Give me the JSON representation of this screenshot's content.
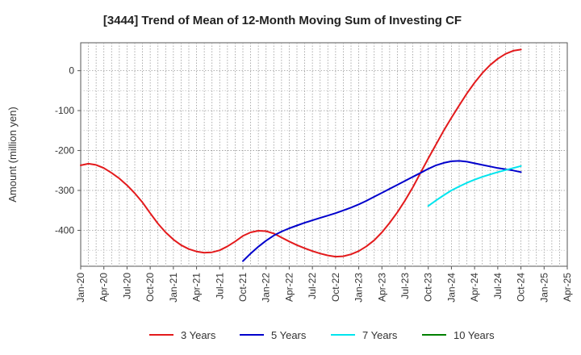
{
  "chart_data": {
    "type": "line",
    "title": "[3444]  Trend of Mean of 12-Month Moving Sum of Investing CF",
    "ylabel": "Amount (million yen)",
    "xlabel": "",
    "x_ticks": [
      "Jan-20",
      "Apr-20",
      "Jul-20",
      "Oct-20",
      "Jan-21",
      "Apr-21",
      "Jul-21",
      "Oct-21",
      "Jan-22",
      "Apr-22",
      "Jul-22",
      "Oct-22",
      "Jan-23",
      "Apr-23",
      "Jul-23",
      "Oct-23",
      "Jan-24",
      "Apr-24",
      "Jul-24",
      "Oct-24",
      "Jan-25",
      "Apr-25"
    ],
    "y_ticks": [
      0,
      -100,
      -200,
      -300,
      -400
    ],
    "ylim": [
      -490,
      70
    ],
    "grid": true,
    "legend_position": "bottom",
    "series": [
      {
        "name": "3 Years",
        "color": "#e31a1c",
        "points": [
          [
            "Jan-20",
            -237
          ],
          [
            "Feb-20",
            -233
          ],
          [
            "Mar-20",
            -236
          ],
          [
            "Apr-20",
            -244
          ],
          [
            "May-20",
            -256
          ],
          [
            "Jun-20",
            -270
          ],
          [
            "Jul-20",
            -287
          ],
          [
            "Aug-20",
            -307
          ],
          [
            "Sep-20",
            -330
          ],
          [
            "Oct-20",
            -357
          ],
          [
            "Nov-20",
            -383
          ],
          [
            "Dec-20",
            -405
          ],
          [
            "Jan-21",
            -423
          ],
          [
            "Feb-21",
            -437
          ],
          [
            "Mar-21",
            -447
          ],
          [
            "Apr-21",
            -453
          ],
          [
            "May-21",
            -456
          ],
          [
            "Jun-21",
            -455
          ],
          [
            "Jul-21",
            -450
          ],
          [
            "Aug-21",
            -440
          ],
          [
            "Sep-21",
            -428
          ],
          [
            "Oct-21",
            -414
          ],
          [
            "Nov-21",
            -405
          ],
          [
            "Dec-21",
            -401
          ],
          [
            "Jan-22",
            -402
          ],
          [
            "Feb-22",
            -408
          ],
          [
            "Mar-22",
            -418
          ],
          [
            "Apr-22",
            -428
          ],
          [
            "May-22",
            -437
          ],
          [
            "Jun-22",
            -445
          ],
          [
            "Jul-22",
            -452
          ],
          [
            "Aug-22",
            -458
          ],
          [
            "Sep-22",
            -463
          ],
          [
            "Oct-22",
            -466
          ],
          [
            "Nov-22",
            -465
          ],
          [
            "Dec-22",
            -460
          ],
          [
            "Jan-23",
            -452
          ],
          [
            "Feb-23",
            -440
          ],
          [
            "Mar-23",
            -425
          ],
          [
            "Apr-23",
            -405
          ],
          [
            "May-23",
            -381
          ],
          [
            "Jun-23",
            -355
          ],
          [
            "Jul-23",
            -325
          ],
          [
            "Aug-23",
            -292
          ],
          [
            "Sep-23",
            -256
          ],
          [
            "Oct-23",
            -220
          ],
          [
            "Nov-23",
            -185
          ],
          [
            "Dec-23",
            -150
          ],
          [
            "Jan-24",
            -118
          ],
          [
            "Feb-24",
            -87
          ],
          [
            "Mar-24",
            -57
          ],
          [
            "Apr-24",
            -30
          ],
          [
            "May-24",
            -6
          ],
          [
            "Jun-24",
            14
          ],
          [
            "Jul-24",
            30
          ],
          [
            "Aug-24",
            42
          ],
          [
            "Sep-24",
            50
          ],
          [
            "Oct-24",
            53
          ]
        ]
      },
      {
        "name": "5 Years",
        "color": "#0000cc",
        "points": [
          [
            "Oct-21",
            -477
          ],
          [
            "Nov-21",
            -458
          ],
          [
            "Dec-21",
            -441
          ],
          [
            "Jan-22",
            -426
          ],
          [
            "Feb-22",
            -413
          ],
          [
            "Mar-22",
            -403
          ],
          [
            "Apr-22",
            -395
          ],
          [
            "May-22",
            -388
          ],
          [
            "Jun-22",
            -381
          ],
          [
            "Jul-22",
            -375
          ],
          [
            "Aug-22",
            -369
          ],
          [
            "Sep-22",
            -363
          ],
          [
            "Oct-22",
            -357
          ],
          [
            "Nov-22",
            -350
          ],
          [
            "Dec-22",
            -343
          ],
          [
            "Jan-23",
            -335
          ],
          [
            "Feb-23",
            -326
          ],
          [
            "Mar-23",
            -316
          ],
          [
            "Apr-23",
            -306
          ],
          [
            "May-23",
            -296
          ],
          [
            "Jun-23",
            -286
          ],
          [
            "Jul-23",
            -276
          ],
          [
            "Aug-23",
            -266
          ],
          [
            "Sep-23",
            -256
          ],
          [
            "Oct-23",
            -246
          ],
          [
            "Nov-23",
            -237
          ],
          [
            "Dec-23",
            -231
          ],
          [
            "Jan-24",
            -227
          ],
          [
            "Feb-24",
            -226
          ],
          [
            "Mar-24",
            -228
          ],
          [
            "Apr-24",
            -232
          ],
          [
            "May-24",
            -236
          ],
          [
            "Jun-24",
            -240
          ],
          [
            "Jul-24",
            -244
          ],
          [
            "Aug-24",
            -247
          ],
          [
            "Sep-24",
            -250
          ],
          [
            "Oct-24",
            -254
          ]
        ]
      },
      {
        "name": "7 Years",
        "color": "#00e5ee",
        "points": [
          [
            "Oct-23",
            -339
          ],
          [
            "Nov-23",
            -325
          ],
          [
            "Dec-23",
            -312
          ],
          [
            "Jan-24",
            -300
          ],
          [
            "Feb-24",
            -290
          ],
          [
            "Mar-24",
            -281
          ],
          [
            "Apr-24",
            -273
          ],
          [
            "May-24",
            -266
          ],
          [
            "Jun-24",
            -260
          ],
          [
            "Jul-24",
            -254
          ],
          [
            "Aug-24",
            -249
          ],
          [
            "Sep-24",
            -244
          ],
          [
            "Oct-24",
            -239
          ]
        ]
      },
      {
        "name": "10 Years",
        "color": "#008000",
        "points": []
      }
    ]
  }
}
